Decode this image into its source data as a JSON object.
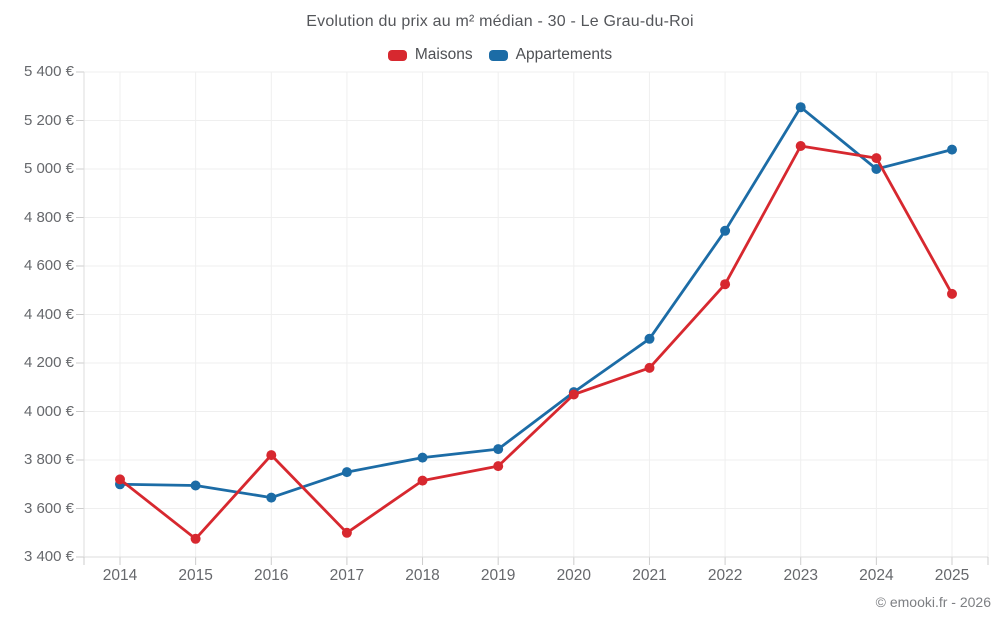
{
  "page": {
    "copyright": "© emooki.fr - 2026"
  },
  "chart_data": {
    "type": "line",
    "title": "Evolution du prix au m² médian - 30 - Le Grau-du-Roi",
    "xlabel": "",
    "ylabel": "",
    "categories": [
      "2014",
      "2015",
      "2016",
      "2017",
      "2018",
      "2019",
      "2020",
      "2021",
      "2022",
      "2023",
      "2024",
      "2025"
    ],
    "series": [
      {
        "name": "Maisons",
        "color": "#d7282f",
        "values": [
          3720,
          3475,
          3820,
          3500,
          3715,
          3775,
          4070,
          4180,
          4525,
          5095,
          5045,
          4485
        ]
      },
      {
        "name": "Appartements",
        "color": "#1c6ca6",
        "values": [
          3700,
          3695,
          3645,
          3750,
          3810,
          3845,
          4080,
          4300,
          4745,
          5255,
          5000,
          5080
        ]
      }
    ],
    "ylim": [
      3400,
      5400
    ],
    "yticks": [
      3400,
      3600,
      3800,
      4000,
      4200,
      4400,
      4600,
      4800,
      5000,
      5200,
      5400
    ],
    "ytick_labels": [
      "3 400 €",
      "3 600 €",
      "3 800 €",
      "4 000 €",
      "4 200 €",
      "4 400 €",
      "4 600 €",
      "4 800 €",
      "5 000 €",
      "5 200 €",
      "5 400 €"
    ],
    "grid": true,
    "legend_position": "top",
    "currency_suffix": " €"
  }
}
